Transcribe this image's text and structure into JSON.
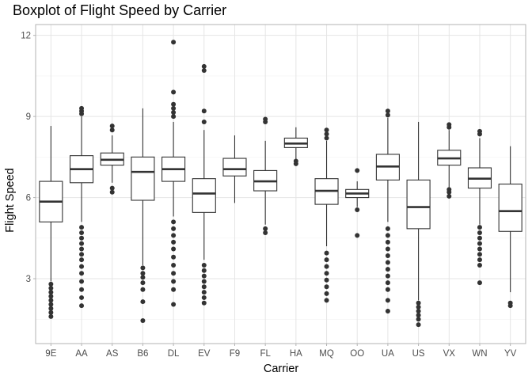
{
  "chart_data": {
    "type": "boxplot",
    "title": "Boxplot of Flight Speed by Carrier",
    "xlabel": "Carrier",
    "ylabel": "Flight Speed",
    "ylim": [
      0.6,
      12.4
    ],
    "yticks": [
      3,
      6,
      9,
      12
    ],
    "grid": true,
    "series": [
      {
        "name": "9E",
        "whisker_low": 2.9,
        "q1": 5.1,
        "median": 5.85,
        "q3": 6.6,
        "whisker_high": 8.65,
        "outliers": [
          1.6,
          1.75,
          1.9,
          2.05,
          2.2,
          2.35,
          2.5,
          2.65,
          2.8
        ]
      },
      {
        "name": "AA",
        "whisker_low": 5.1,
        "q1": 6.55,
        "median": 7.05,
        "q3": 7.55,
        "whisker_high": 9.0,
        "outliers": [
          2.0,
          2.3,
          2.6,
          2.9,
          3.2,
          3.45,
          3.7,
          3.9,
          4.1,
          4.3,
          4.5,
          4.7,
          4.9,
          9.1,
          9.2,
          9.3
        ]
      },
      {
        "name": "AS",
        "whisker_low": 6.55,
        "q1": 7.2,
        "median": 7.4,
        "q3": 7.65,
        "whisker_high": 8.3,
        "outliers": [
          6.2,
          6.35,
          8.5,
          8.65
        ]
      },
      {
        "name": "B6",
        "whisker_low": 3.5,
        "q1": 5.9,
        "median": 6.95,
        "q3": 7.5,
        "whisker_high": 9.3,
        "outliers": [
          1.45,
          2.15,
          2.6,
          2.85,
          3.05,
          3.2,
          3.4
        ]
      },
      {
        "name": "DL",
        "whisker_low": 5.3,
        "q1": 6.6,
        "median": 7.05,
        "q3": 7.5,
        "whisker_high": 8.8,
        "outliers": [
          2.05,
          2.6,
          2.9,
          3.2,
          3.5,
          3.8,
          4.1,
          4.35,
          4.6,
          4.85,
          5.1,
          9.0,
          9.15,
          9.3,
          9.45,
          9.9,
          11.75
        ]
      },
      {
        "name": "EV",
        "whisker_low": 3.7,
        "q1": 5.45,
        "median": 6.15,
        "q3": 6.7,
        "whisker_high": 8.5,
        "outliers": [
          2.1,
          2.3,
          2.5,
          2.7,
          2.9,
          3.1,
          3.3,
          3.5,
          8.8,
          9.2,
          10.7,
          10.85
        ]
      },
      {
        "name": "F9",
        "whisker_low": 5.8,
        "q1": 6.8,
        "median": 7.05,
        "q3": 7.45,
        "whisker_high": 8.3,
        "outliers": []
      },
      {
        "name": "FL",
        "whisker_low": 5.0,
        "q1": 6.25,
        "median": 6.6,
        "q3": 7.0,
        "whisker_high": 8.1,
        "outliers": [
          4.7,
          4.85,
          8.8,
          8.9
        ]
      },
      {
        "name": "HA",
        "whisker_low": 7.4,
        "q1": 7.85,
        "median": 8.0,
        "q3": 8.2,
        "whisker_high": 8.6,
        "outliers": [
          7.25,
          7.35
        ]
      },
      {
        "name": "MQ",
        "whisker_low": 4.2,
        "q1": 5.75,
        "median": 6.25,
        "q3": 6.7,
        "whisker_high": 8.1,
        "outliers": [
          2.2,
          2.45,
          2.7,
          2.95,
          3.2,
          3.45,
          3.7,
          3.95,
          8.2,
          8.35,
          8.5
        ]
      },
      {
        "name": "OO",
        "whisker_low": 5.65,
        "q1": 6.0,
        "median": 6.15,
        "q3": 6.3,
        "whisker_high": 6.6,
        "outliers": [
          4.6,
          5.55,
          7.0
        ]
      },
      {
        "name": "UA",
        "whisker_low": 5.1,
        "q1": 6.65,
        "median": 7.15,
        "q3": 7.6,
        "whisker_high": 8.95,
        "outliers": [
          1.8,
          2.2,
          2.6,
          2.85,
          3.1,
          3.35,
          3.6,
          3.85,
          4.1,
          4.35,
          4.6,
          4.85,
          9.05,
          9.2
        ]
      },
      {
        "name": "US",
        "whisker_low": 2.2,
        "q1": 4.85,
        "median": 5.65,
        "q3": 6.65,
        "whisker_high": 8.8,
        "outliers": [
          1.3,
          1.5,
          1.65,
          1.8,
          1.95,
          2.1
        ]
      },
      {
        "name": "VX",
        "whisker_low": 6.35,
        "q1": 7.2,
        "median": 7.45,
        "q3": 7.75,
        "whisker_high": 8.5,
        "outliers": [
          6.05,
          6.2,
          6.3,
          8.6,
          8.7
        ]
      },
      {
        "name": "WN",
        "whisker_low": 5.0,
        "q1": 6.35,
        "median": 6.7,
        "q3": 7.1,
        "whisker_high": 8.2,
        "outliers": [
          2.85,
          3.5,
          3.7,
          3.9,
          4.1,
          4.3,
          4.5,
          4.7,
          4.9,
          8.35,
          8.45
        ]
      },
      {
        "name": "YV",
        "whisker_low": 2.5,
        "q1": 4.75,
        "median": 5.5,
        "q3": 6.5,
        "whisker_high": 7.9,
        "outliers": [
          2.0,
          2.1
        ]
      }
    ]
  },
  "colors": {
    "panel_border": "#b3b3b3",
    "grid_major": "#e5e5e5",
    "grid_minor": "#f2f2f2",
    "box_line": "#333333",
    "outlier": "#333333"
  }
}
